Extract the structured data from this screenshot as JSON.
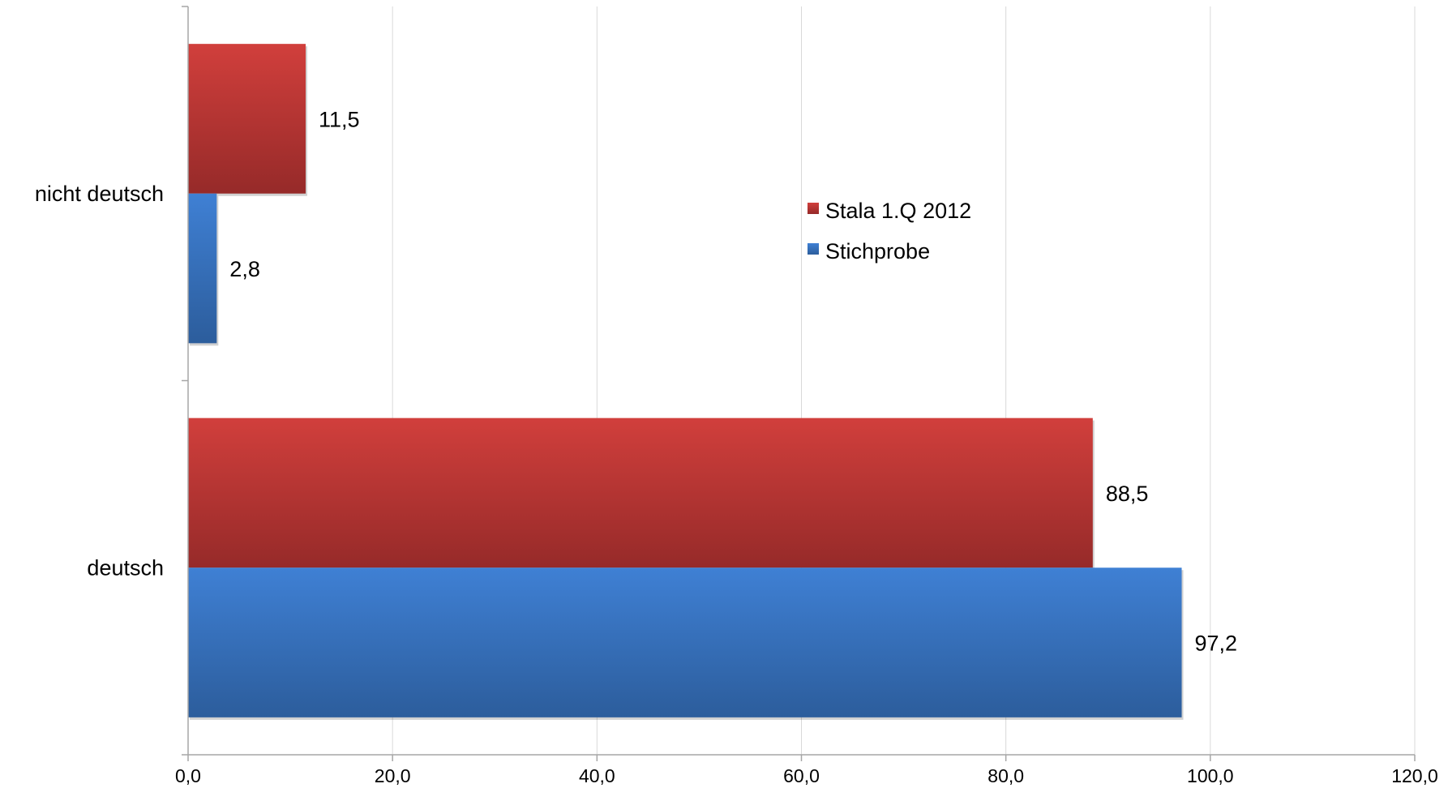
{
  "chart_data": {
    "type": "bar",
    "orientation": "horizontal",
    "categories": [
      "nicht deutsch",
      "deutsch"
    ],
    "series": [
      {
        "name": "Stala 1.Q 2012",
        "color": "#c0392b",
        "values": [
          11.5,
          88.5
        ]
      },
      {
        "name": "Stichprobe",
        "color": "#3a76c4",
        "values": [
          2.8,
          97.2
        ]
      }
    ],
    "data_labels": [
      [
        "11,5",
        "88,5"
      ],
      [
        "2,8",
        "97,2"
      ]
    ],
    "x_ticks": [
      "0,0",
      "20,0",
      "40,0",
      "60,0",
      "80,0",
      "100,0",
      "120,0"
    ],
    "x_tick_values": [
      0,
      20,
      40,
      60,
      80,
      100,
      120
    ],
    "xlim": [
      0,
      120
    ],
    "title": "",
    "xlabel": "",
    "ylabel": "",
    "grid": true,
    "legend_position": "center"
  }
}
